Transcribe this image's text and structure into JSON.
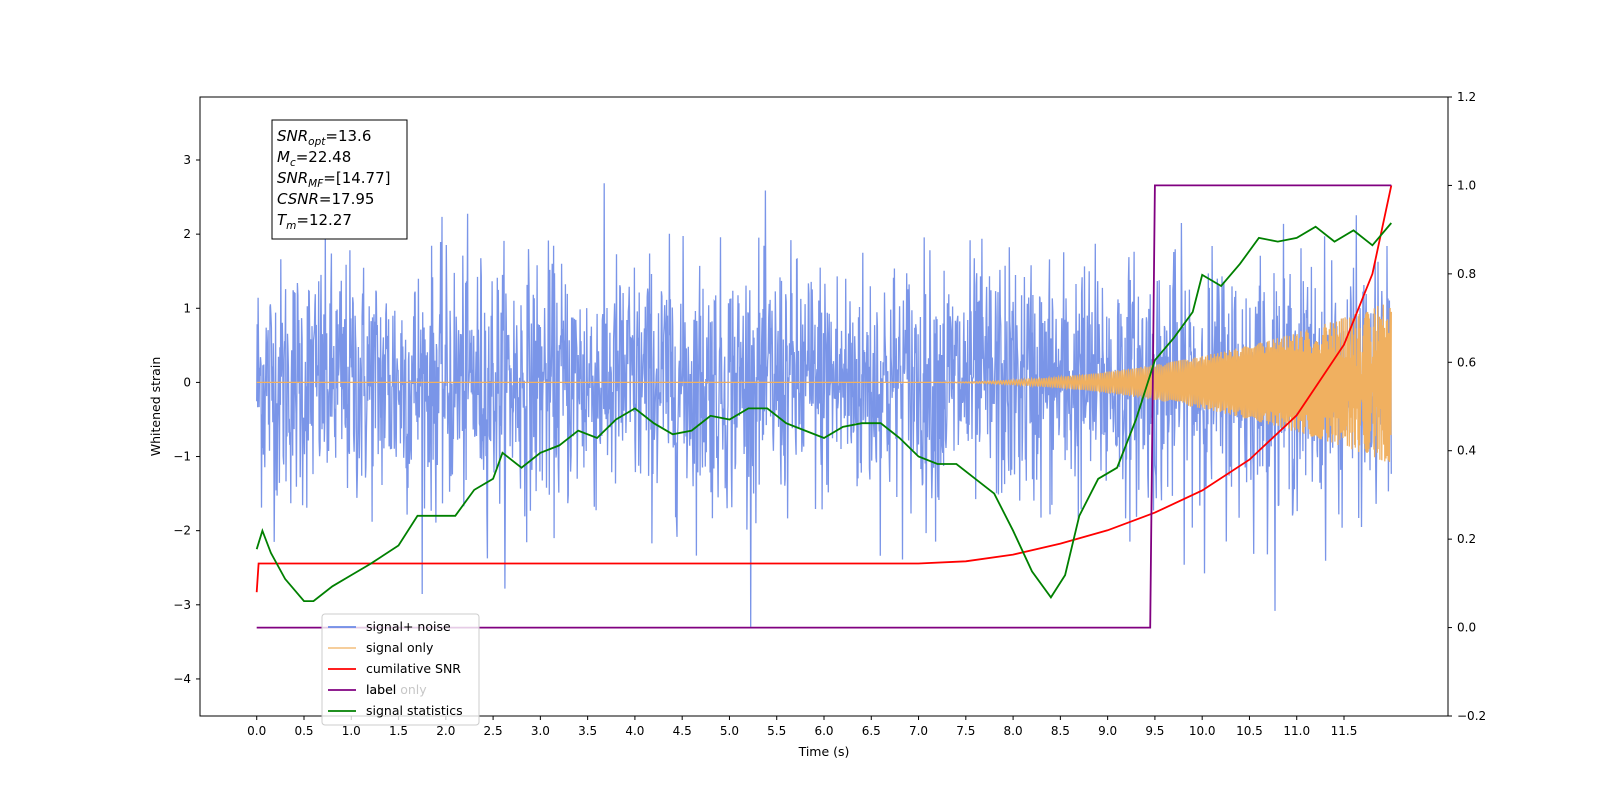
{
  "chart_data": {
    "type": "line",
    "xlabel": "Time (s)",
    "ylabel": "Whitened strain",
    "xlim": [
      -0.6,
      12.6
    ],
    "ylim": [
      -4.5,
      3.85
    ],
    "y2lim": [
      -0.2,
      1.2
    ],
    "x_ticks": [
      "0.0",
      "0.5",
      "1.0",
      "1.5",
      "2.0",
      "2.5",
      "3.0",
      "3.5",
      "4.0",
      "4.5",
      "5.0",
      "5.5",
      "6.0",
      "6.5",
      "7.0",
      "7.5",
      "8.0",
      "8.5",
      "9.0",
      "9.5",
      "10.0",
      "10.5",
      "11.0",
      "11.5"
    ],
    "y_ticks": [
      "3",
      "2",
      "1",
      "0",
      "−1",
      "−2",
      "−3",
      "−4"
    ],
    "y2_ticks": [
      "1.2",
      "1.0",
      "0.8",
      "0.6",
      "0.4",
      "0.2",
      "0.0",
      "−0.2"
    ],
    "info_box": [
      {
        "name": "SNR",
        "sub": "opt",
        "value": "=13.6"
      },
      {
        "name": "M",
        "sub": "c",
        "value": "=22.48"
      },
      {
        "name": "SNR",
        "sub": "MF",
        "value": "=[14.77]"
      },
      {
        "name": "CSNR",
        "sub": "",
        "value": "=17.95"
      },
      {
        "name": "T",
        "sub": "m",
        "value": "=12.27"
      }
    ],
    "legend_position": "lower-left",
    "series": [
      {
        "name": "signal+ noise",
        "color": "#6b8ae6",
        "axis": "left",
        "noise_std": 0.82,
        "noise_range": [
          -4.1,
          3.45
        ],
        "range_x": [
          0.0,
          12.0
        ]
      },
      {
        "name": "signal only",
        "color": "#f0b060",
        "axis": "left",
        "amplitude_start": 0.0,
        "amplitude_end": 1.1,
        "visible_from_x": 7.0,
        "range_x": [
          0.0,
          12.0
        ]
      },
      {
        "name": "cumilative SNR",
        "color": "#ff0000",
        "axis": "right",
        "x": [
          0.0,
          0.02,
          7.0,
          7.5,
          8.0,
          8.5,
          9.0,
          9.5,
          10.0,
          10.5,
          11.0,
          11.5,
          11.8,
          12.0
        ],
        "y": [
          0.08,
          0.145,
          0.145,
          0.15,
          0.165,
          0.19,
          0.22,
          0.26,
          0.31,
          0.38,
          0.48,
          0.64,
          0.8,
          1.0
        ]
      },
      {
        "name": "label",
        "color": "#800080",
        "axis": "right",
        "x": [
          0.0,
          9.45,
          9.5,
          12.0
        ],
        "y": [
          0.0,
          0.0,
          1.0,
          1.0
        ]
      },
      {
        "name": "label only",
        "color": "#c7c7c7",
        "axis": "right",
        "legend_only": true,
        "x": [],
        "y": []
      },
      {
        "name": "signal statistics",
        "color": "#008000",
        "axis": "left",
        "x": [
          0.0,
          0.06,
          0.15,
          0.3,
          0.5,
          0.6,
          0.8,
          1.0,
          1.2,
          1.5,
          1.7,
          1.9,
          2.1,
          2.3,
          2.5,
          2.6,
          2.8,
          3.0,
          3.2,
          3.4,
          3.6,
          3.8,
          4.0,
          4.2,
          4.4,
          4.6,
          4.8,
          5.0,
          5.2,
          5.4,
          5.6,
          5.8,
          6.0,
          6.2,
          6.4,
          6.6,
          6.8,
          7.0,
          7.2,
          7.4,
          7.6,
          7.8,
          8.0,
          8.2,
          8.4,
          8.55,
          8.7,
          8.9,
          9.1,
          9.3,
          9.5,
          9.7,
          9.9,
          10.0,
          10.2,
          10.4,
          10.6,
          10.8,
          11.0,
          11.2,
          11.4,
          11.6,
          11.8,
          12.0
        ],
        "y": [
          -2.25,
          -2.0,
          -2.3,
          -2.65,
          -2.95,
          -2.95,
          -2.75,
          -2.6,
          -2.45,
          -2.2,
          -1.8,
          -1.8,
          -1.8,
          -1.45,
          -1.3,
          -0.95,
          -1.15,
          -0.95,
          -0.85,
          -0.65,
          -0.75,
          -0.5,
          -0.35,
          -0.55,
          -0.7,
          -0.65,
          -0.45,
          -0.5,
          -0.35,
          -0.35,
          -0.55,
          -0.65,
          -0.75,
          -0.6,
          -0.55,
          -0.55,
          -0.75,
          -1.0,
          -1.1,
          -1.1,
          -1.3,
          -1.5,
          -2.0,
          -2.55,
          -2.9,
          -2.6,
          -1.8,
          -1.3,
          -1.15,
          -0.5,
          0.3,
          0.6,
          0.95,
          1.45,
          1.3,
          1.6,
          1.95,
          1.9,
          1.95,
          2.1,
          1.9,
          2.05,
          1.85,
          2.15
        ]
      }
    ]
  }
}
